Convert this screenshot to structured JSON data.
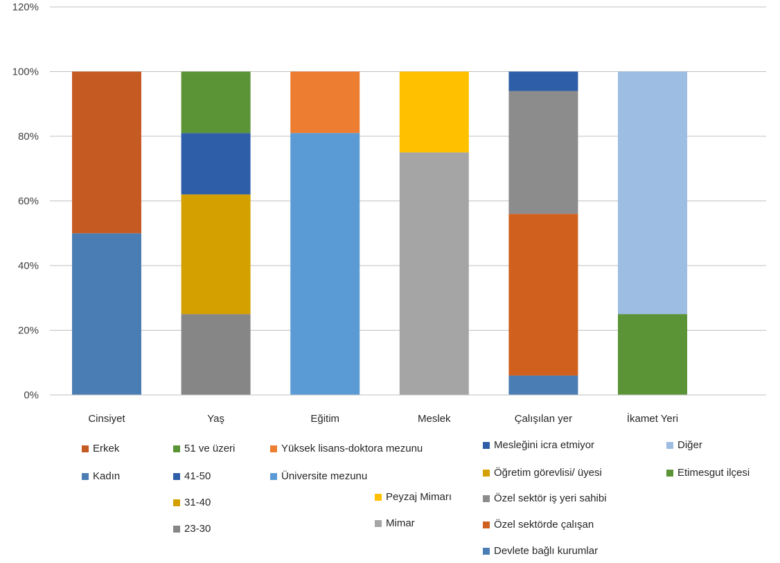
{
  "chart_data": {
    "type": "bar",
    "stacked": true,
    "ylim": [
      0,
      1.2
    ],
    "yticks": [
      "0%",
      "20%",
      "40%",
      "60%",
      "80%",
      "100%",
      "120%"
    ],
    "grid": true,
    "legend_placement": "bottom",
    "categories": [
      "Cinsiyet",
      "Yaş",
      "Eğitim",
      "Meslek",
      "Çalışılan yer",
      "İkamet Yeri"
    ],
    "series": [
      {
        "name": "Kadın",
        "category": "Cinsiyet",
        "value": 0.5,
        "color": "#4a7db4"
      },
      {
        "name": "Erkek",
        "category": "Cinsiyet",
        "value": 0.5,
        "color": "#c55a22"
      },
      {
        "name": "23-30",
        "category": "Yaş",
        "value": 0.25,
        "color": "#868686"
      },
      {
        "name": "31-40",
        "category": "Yaş",
        "value": 0.37,
        "color": "#d4a000"
      },
      {
        "name": "41-50",
        "category": "Yaş",
        "value": 0.19,
        "color": "#2f5ea8"
      },
      {
        "name": "51 ve üzeri",
        "category": "Yaş",
        "value": 0.19,
        "color": "#5b9337"
      },
      {
        "name": "Üniversite mezunu",
        "category": "Eğitim",
        "value": 0.81,
        "color": "#5b9bd5"
      },
      {
        "name": "Yüksek lisans-doktora  mezunu",
        "category": "Eğitim",
        "value": 0.19,
        "color": "#ed7d31"
      },
      {
        "name": "Mimar",
        "category": "Meslek",
        "value": 0.75,
        "color": "#a5a5a5"
      },
      {
        "name": "Peyzaj Mimarı",
        "category": "Meslek",
        "value": 0.25,
        "color": "#ffc000"
      },
      {
        "name": "Devlete bağlı kurumlar",
        "category": "Çalışılan yer",
        "value": 0.06,
        "color": "#4a7db4"
      },
      {
        "name": "Özel sektörde çalışan",
        "category": "Çalışılan yer",
        "value": 0.5,
        "color": "#d0601e"
      },
      {
        "name": "Özel sektör iş yeri sahibi",
        "category": "Çalışılan yer",
        "value": 0.38,
        "color": "#8c8c8c"
      },
      {
        "name": "Öğretim görevlisi/ üyesi",
        "category": "Çalışılan yer",
        "value": 0.0,
        "color": "#d4a000"
      },
      {
        "name": "Mesleğini icra etmiyor",
        "category": "Çalışılan yer",
        "value": 0.06,
        "color": "#2f5ea8"
      },
      {
        "name": "Etimesgut ilçesi",
        "category": "İkamet Yeri",
        "value": 0.25,
        "color": "#5b9337"
      },
      {
        "name": "Diğer",
        "category": "İkamet Yeri",
        "value": 0.75,
        "color": "#9dbde3"
      }
    ]
  },
  "legend": [
    {
      "label": "Erkek",
      "color": "#c55a22"
    },
    {
      "label": "Kadın",
      "color": "#4a7db4"
    },
    {
      "label": "51 ve üzeri",
      "color": "#5b9337"
    },
    {
      "label": "41-50",
      "color": "#2f5ea8"
    },
    {
      "label": "31-40",
      "color": "#d4a000"
    },
    {
      "label": "23-30",
      "color": "#868686"
    },
    {
      "label": "Yüksek lisans-doktora  mezunu",
      "color": "#ed7d31"
    },
    {
      "label": "Üniversite mezunu",
      "color": "#5b9bd5"
    },
    {
      "label": "Peyzaj Mimarı",
      "color": "#ffc000"
    },
    {
      "label": "Mimar",
      "color": "#a5a5a5"
    },
    {
      "label": "Mesleğini icra etmiyor",
      "color": "#2f5ea8"
    },
    {
      "label": "Öğretim görevlisi/ üyesi",
      "color": "#d4a000"
    },
    {
      "label": "Özel sektör iş yeri sahibi",
      "color": "#8c8c8c"
    },
    {
      "label": "Özel sektörde çalışan",
      "color": "#d0601e"
    },
    {
      "label": "Devlete bağlı kurumlar",
      "color": "#4a7db4"
    },
    {
      "label": "Diğer",
      "color": "#9dbde3"
    },
    {
      "label": "Etimesgut ilçesi",
      "color": "#5b9337"
    }
  ]
}
